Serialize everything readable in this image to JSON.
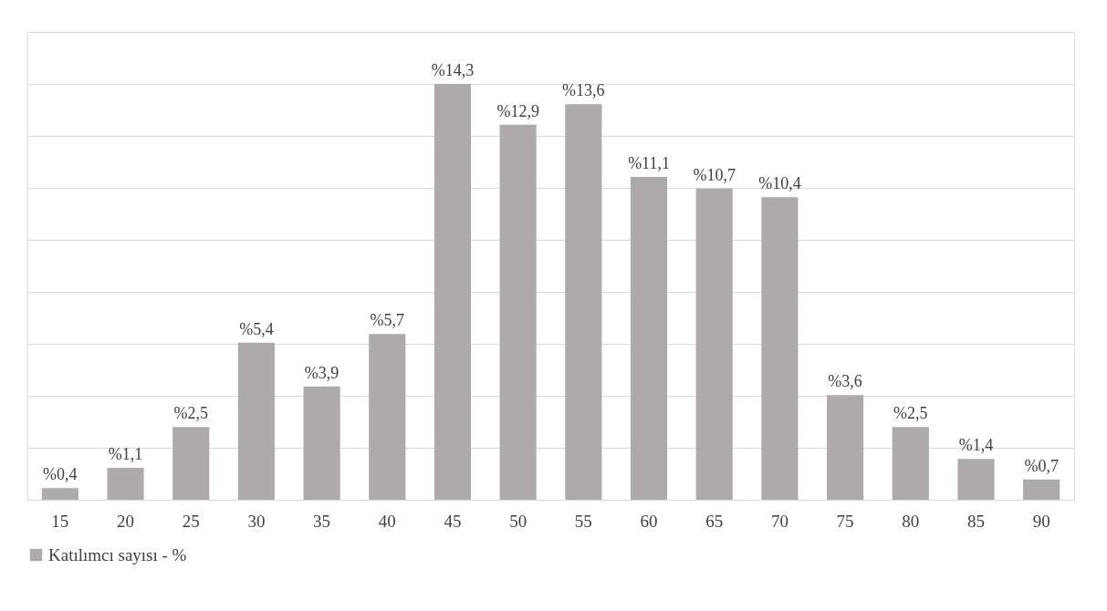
{
  "chart_data": {
    "type": "bar",
    "categories": [
      "15",
      "20",
      "25",
      "30",
      "35",
      "40",
      "45",
      "50",
      "55",
      "60",
      "65",
      "70",
      "75",
      "80",
      "85",
      "90"
    ],
    "series": [
      {
        "name": "Katılımcı sayısı - %",
        "color": "#aeaaaa",
        "values": [
          0.4,
          1.1,
          2.5,
          5.4,
          3.9,
          5.7,
          14.3,
          12.9,
          13.6,
          11.1,
          10.7,
          10.4,
          3.6,
          2.5,
          1.4,
          0.7
        ],
        "value_labels": [
          "%0,4",
          "%1,1",
          "%2,5",
          "%5,4",
          "%3,9",
          "%5,7",
          "%14,3",
          "%12,9",
          "%13,6",
          "%11,1",
          "%10,7",
          "%10,4",
          "%3,6",
          "%2,5",
          "%1,4",
          "%0,7"
        ]
      }
    ],
    "ylim": [
      0,
      16.0875
    ],
    "yticks": [
      {
        "value": 0,
        "label": null
      },
      {
        "value": 1.7875,
        "label": null
      },
      {
        "value": 3.575,
        "label": null
      },
      {
        "value": 5.3625,
        "label": null
      },
      {
        "value": 7.15,
        "label": null
      },
      {
        "value": 8.9375,
        "label": null
      },
      {
        "value": 10.725,
        "label": null
      },
      {
        "value": 12.5125,
        "label": null
      },
      {
        "value": 14.3,
        "label": null
      },
      {
        "value": 16.0875,
        "label": null
      }
    ],
    "tick_labels": "x",
    "grid": "y",
    "legend": "bottom"
  }
}
